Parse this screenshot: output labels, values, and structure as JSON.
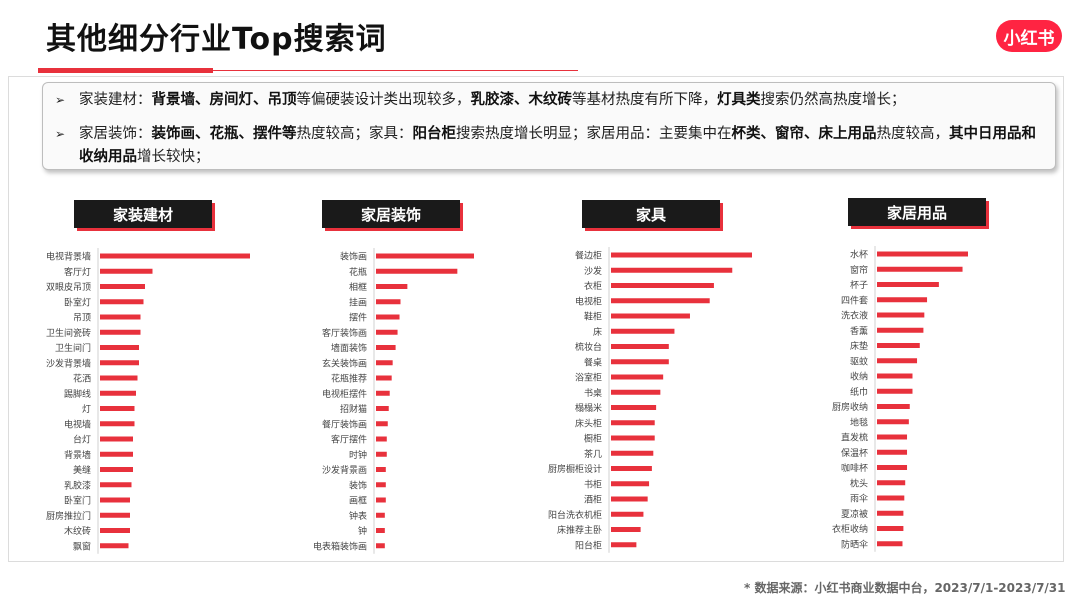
{
  "page": {
    "title": "其他细分行业Top搜索词",
    "logo_text": "小红书",
    "accent_color": "#e8313c",
    "footer": "* 数据来源：小红书商业数据中台，2023/7/1-2023/7/31"
  },
  "summary": {
    "bullet_icon": "arrow-right-icon",
    "bullets": [
      [
        {
          "t": "家装建材：",
          "b": false
        },
        {
          "t": "背景墙、房间灯、吊顶",
          "b": true
        },
        {
          "t": "等偏硬装设计类出现较多，",
          "b": false
        },
        {
          "t": "乳胶漆、木纹砖",
          "b": true
        },
        {
          "t": "等基材热度有所下降，",
          "b": false
        },
        {
          "t": "灯具类",
          "b": true
        },
        {
          "t": "搜索仍然高热度增长；",
          "b": false
        }
      ],
      [
        {
          "t": "家居装饰：",
          "b": false
        },
        {
          "t": "装饰画、花瓶、摆件等",
          "b": true
        },
        {
          "t": "热度较高；家具：",
          "b": false
        },
        {
          "t": "阳台柜",
          "b": true
        },
        {
          "t": "搜索热度增长明显；家居用品：主要集中在",
          "b": false
        },
        {
          "t": "杯类、窗帘、床上用品",
          "b": true
        },
        {
          "t": "热度较高，",
          "b": false
        },
        {
          "t": "其中日用品和收纳用品",
          "b": true
        },
        {
          "t": "增长较快；",
          "b": false
        }
      ]
    ]
  },
  "chart_data": [
    {
      "type": "bar",
      "orientation": "horizontal",
      "title": "家装建材",
      "categories": [
        "电视背景墙",
        "客厅灯",
        "双眼皮吊顶",
        "卧室灯",
        "吊顶",
        "卫生间瓷砖",
        "卫生间门",
        "沙发背景墙",
        "花洒",
        "踢脚线",
        "灯",
        "电视墙",
        "台灯",
        "背景墙",
        "美缝",
        "乳胶漆",
        "卧室门",
        "厨房推拉门",
        "木纹砖",
        "飘窗"
      ],
      "values": [
        100,
        35,
        30,
        29,
        27,
        27,
        26,
        26,
        25,
        24,
        23,
        23,
        22,
        22,
        22,
        21,
        20,
        20,
        20,
        19
      ],
      "color": "#e8313c"
    },
    {
      "type": "bar",
      "orientation": "horizontal",
      "title": "家居装饰",
      "categories": [
        "装饰画",
        "花瓶",
        "相框",
        "挂画",
        "摆件",
        "客厅装饰画",
        "墙面装饰",
        "玄关装饰画",
        "花瓶推荐",
        "电视柜摆件",
        "招财猫",
        "餐厅装饰画",
        "客厅摆件",
        "时钟",
        "沙发背景画",
        "装饰",
        "画框",
        "钟表",
        "钟",
        "电表箱装饰画"
      ],
      "values": [
        100,
        83,
        32,
        25,
        24,
        22,
        20,
        17,
        16,
        14,
        13,
        12,
        11,
        11,
        10,
        10,
        10,
        9,
        9,
        9
      ],
      "color": "#e8313c"
    },
    {
      "type": "bar",
      "orientation": "horizontal",
      "title": "家具",
      "categories": [
        "餐边柜",
        "沙发",
        "衣柜",
        "电视柜",
        "鞋柜",
        "床",
        "梳妆台",
        "餐桌",
        "浴室柜",
        "书桌",
        "榻榻米",
        "床头柜",
        "橱柜",
        "茶几",
        "厨房橱柜设计",
        "书柜",
        "酒柜",
        "阳台洗衣机柜",
        "床推荐主卧",
        "阳台柜"
      ],
      "values": [
        100,
        86,
        73,
        70,
        56,
        45,
        41,
        41,
        37,
        35,
        32,
        31,
        31,
        30,
        29,
        27,
        26,
        23,
        21,
        18
      ],
      "color": "#e8313c"
    },
    {
      "type": "bar",
      "orientation": "horizontal",
      "title": "家居用品",
      "categories": [
        "水杯",
        "窗帘",
        "杯子",
        "四件套",
        "洗衣液",
        "香薰",
        "床垫",
        "驱蚊",
        "收纳",
        "纸巾",
        "厨房收纳",
        "地毯",
        "直发梳",
        "保温杯",
        "咖啡杯",
        "枕头",
        "雨伞",
        "夏凉被",
        "衣柜收纳",
        "防晒伞"
      ],
      "values": [
        100,
        94,
        68,
        55,
        52,
        51,
        47,
        44,
        39,
        39,
        36,
        35,
        33,
        33,
        33,
        31,
        30,
        29,
        29,
        28
      ],
      "color": "#e8313c"
    }
  ]
}
